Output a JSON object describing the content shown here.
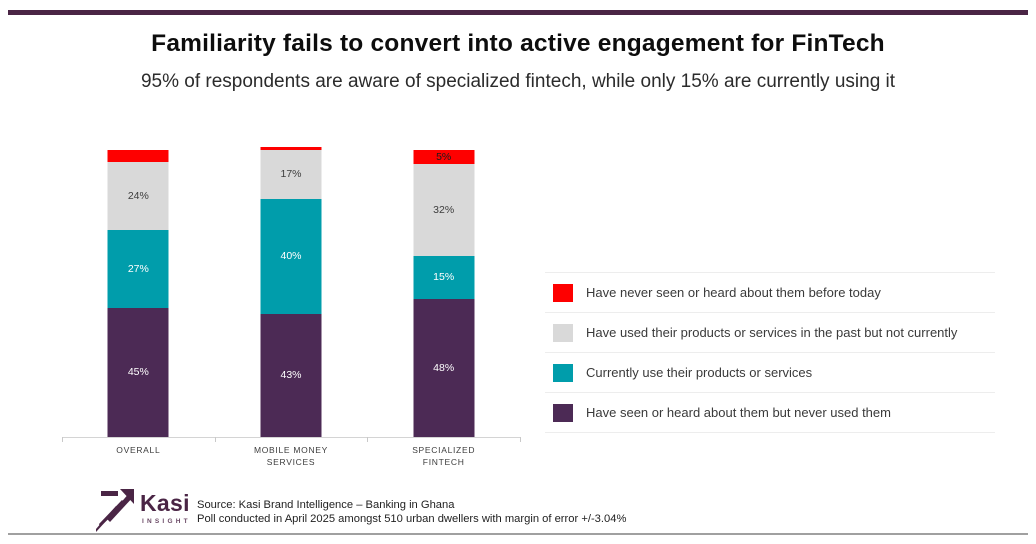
{
  "page": {
    "top_rule_color": "#4a2545",
    "bottom_rule_color": "#a0a0a0"
  },
  "header": {
    "title": "Familiarity fails to convert into active engagement for FinTech",
    "subtitle": "95% of respondents are aware of specialized fintech, while only 15% are currently using it"
  },
  "chart_data": {
    "type": "bar",
    "stacked": true,
    "unit": "%",
    "ylim": [
      0,
      100
    ],
    "grid": false,
    "legend_position": "right",
    "categories": [
      "OVERALL",
      "MOBILE MONEY SERVICES",
      "SPECIALIZED FINTECH"
    ],
    "series": [
      {
        "name": "Have  seen or heard about them but never used them",
        "color": "#4c2a55",
        "label_color": "#ffffff",
        "values": [
          45,
          43,
          48
        ],
        "data_labels": [
          "45%",
          "43%",
          "48%"
        ]
      },
      {
        "name": "Currently use their products or services",
        "color": "#009dab",
        "label_color": "#ffffff",
        "values": [
          27,
          40,
          15
        ],
        "data_labels": [
          "27%",
          "40%",
          "15%"
        ]
      },
      {
        "name": "Have used their products or services in the past but not currently",
        "color": "#d9d9d9",
        "label_color": "#3d3d3d",
        "values": [
          24,
          17,
          32
        ],
        "data_labels": [
          "24%",
          "17%",
          "32%"
        ]
      },
      {
        "name": "Have never seen or heard about them before today",
        "color": "#fe0000",
        "label_color": "#1a1a1a",
        "values": [
          4,
          1,
          5
        ],
        "data_labels": [
          "",
          "",
          "5%"
        ]
      }
    ]
  },
  "legend": {
    "items": [
      {
        "label": "Have never seen or heard about them before today",
        "color": "#fe0000"
      },
      {
        "label": "Have used their products or services in the past but not currently",
        "color": "#d9d9d9"
      },
      {
        "label": "Currently use their products or services",
        "color": "#009dab"
      },
      {
        "label": "Have  seen or heard about them but never used them",
        "color": "#4c2a55"
      }
    ]
  },
  "footer": {
    "logo_brand": "Kasi",
    "logo_sub": "INSIGHT",
    "source_line1": "Source: Kasi Brand Intelligence – Banking in Ghana",
    "source_line2": "Poll conducted in April 2025 amongst 510 urban dwellers with margin of error +/-3.04%"
  }
}
